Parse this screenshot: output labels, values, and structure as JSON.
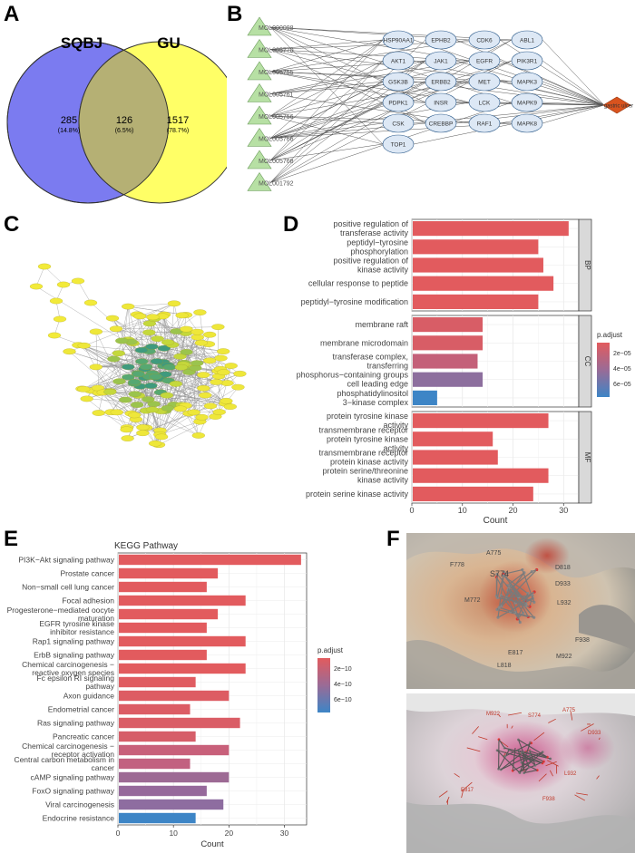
{
  "panels": {
    "a": "A",
    "b": "B",
    "c": "C",
    "d": "D",
    "e": "E",
    "f": "F"
  },
  "venn": {
    "left_label": "SQBJ",
    "right_label": "GU",
    "left_only": "285",
    "left_pct": "(14.8%)",
    "both": "126",
    "both_pct": "(6.5%)",
    "right_only": "1517",
    "right_pct": "(78.7%)",
    "colors": {
      "left": "#7b7bf0",
      "right": "#ffff66",
      "overlap": "#b5b074"
    }
  },
  "network_b": {
    "compounds": [
      "MOL000098",
      "MOL005770",
      "MOL005755",
      "MOL005761",
      "MOL005756",
      "MOL005766",
      "MOL005768",
      "MOL001792"
    ],
    "targets": [
      [
        "HSP90AA1",
        "EPHB2",
        "CDK6",
        "ABL1"
      ],
      [
        "AKT1",
        "JAK1",
        "EGFR",
        "PIK3R1"
      ],
      [
        "GSK3B",
        "ERBB2",
        "MET",
        "MAPK3"
      ],
      [
        "PDPK1",
        "INSR",
        "LCK",
        "MAPK9"
      ],
      [
        "CSK",
        "CREBBP",
        "RAF1",
        "MAPK8"
      ],
      [
        "TOP1"
      ]
    ],
    "disease": "gastric ulcer",
    "colors": {
      "compound": "#b7e0a4",
      "target": "#dde8f5",
      "disease": "#d9531e"
    }
  },
  "chart_data": [
    {
      "type": "bar",
      "orientation": "horizontal",
      "panel": "D",
      "xlabel": "Count",
      "xlim": [
        0,
        33
      ],
      "xticks": [
        0,
        10,
        20,
        30
      ],
      "legend": {
        "title": "p.adjust",
        "ticks": [
          "2e−05",
          "4e−05",
          "6e−05"
        ],
        "placement": "right"
      },
      "groups": [
        {
          "name": "BP",
          "categories": [
            {
              "label": [
                "positive regulation of",
                "transferase activity"
              ],
              "value": 31,
              "color": "#e25b5e"
            },
            {
              "label": [
                "peptidyl−tyrosine",
                "phosphorylation"
              ],
              "value": 25,
              "color": "#e25b5e"
            },
            {
              "label": [
                "positive regulation of",
                "kinase activity"
              ],
              "value": 26,
              "color": "#e25b5e"
            },
            {
              "label": [
                "cellular response to peptide"
              ],
              "value": 28,
              "color": "#e25b5e"
            },
            {
              "label": [
                "peptidyl−tyrosine modification"
              ],
              "value": 25,
              "color": "#e25b5e"
            }
          ]
        },
        {
          "name": "CC",
          "categories": [
            {
              "label": [
                "membrane raft"
              ],
              "value": 14,
              "color": "#d85d66"
            },
            {
              "label": [
                "membrane microdomain"
              ],
              "value": 14,
              "color": "#d85d66"
            },
            {
              "label": [
                "transferase complex,",
                "transferring"
              ],
              "value": 13,
              "color": "#c46079"
            },
            {
              "label": [
                "phosphorus−containing groups",
                "cell leading edge"
              ],
              "value": 14,
              "color": "#8d6f9e"
            },
            {
              "label": [
                "phosphatidylinositol",
                "3−kinase complex"
              ],
              "value": 5,
              "color": "#3d85c6"
            }
          ]
        },
        {
          "name": "MF",
          "categories": [
            {
              "label": [
                "protein tyrosine kinase",
                "activity"
              ],
              "value": 27,
              "color": "#e25b5e"
            },
            {
              "label": [
                "transmembrane receptor",
                "protein tyrosine kinase",
                "activity"
              ],
              "value": 16,
              "color": "#e25b5e"
            },
            {
              "label": [
                "transmembrane receptor",
                "protein kinase activity"
              ],
              "value": 17,
              "color": "#e25b5e"
            },
            {
              "label": [
                "protein serine/threonine",
                "kinase activity"
              ],
              "value": 27,
              "color": "#e25b5e"
            },
            {
              "label": [
                "protein serine kinase activity"
              ],
              "value": 24,
              "color": "#e25b5e"
            }
          ]
        }
      ]
    },
    {
      "type": "bar",
      "orientation": "horizontal",
      "panel": "E",
      "title": "KEGG Pathway",
      "xlabel": "Count",
      "xlim": [
        0,
        34
      ],
      "xticks": [
        0,
        10,
        20,
        30
      ],
      "legend": {
        "title": "p.adjust",
        "ticks": [
          "2e−10",
          "4e−10",
          "6e−10"
        ],
        "placement": "right"
      },
      "categories": [
        {
          "label": [
            "PI3K−Akt signaling pathway"
          ],
          "value": 33,
          "color": "#e25b5e"
        },
        {
          "label": [
            "Prostate cancer"
          ],
          "value": 18,
          "color": "#e25b5e"
        },
        {
          "label": [
            "Non−small cell lung cancer"
          ],
          "value": 16,
          "color": "#e25b5e"
        },
        {
          "label": [
            "Focal adhesion"
          ],
          "value": 23,
          "color": "#e25b5e"
        },
        {
          "label": [
            "Progesterone−mediated oocyte",
            "maturation"
          ],
          "value": 18,
          "color": "#e25b5e"
        },
        {
          "label": [
            "EGFR tyrosine kinase",
            "inhibitor resistance"
          ],
          "value": 16,
          "color": "#e25b5e"
        },
        {
          "label": [
            "Rap1 signaling pathway"
          ],
          "value": 23,
          "color": "#e25b5e"
        },
        {
          "label": [
            "ErbB signaling pathway"
          ],
          "value": 16,
          "color": "#e25b5e"
        },
        {
          "label": [
            "Chemical carcinogenesis −",
            "reactive oxygen species"
          ],
          "value": 23,
          "color": "#e25b5e"
        },
        {
          "label": [
            "Fc epsilon RI signaling",
            "pathway"
          ],
          "value": 14,
          "color": "#e05c61"
        },
        {
          "label": [
            "Axon guidance"
          ],
          "value": 20,
          "color": "#dd5c63"
        },
        {
          "label": [
            "Endometrial cancer"
          ],
          "value": 13,
          "color": "#dc5c65"
        },
        {
          "label": [
            "Ras signaling pathway"
          ],
          "value": 22,
          "color": "#da5d66"
        },
        {
          "label": [
            "Pancreatic cancer"
          ],
          "value": 14,
          "color": "#d65e69"
        },
        {
          "label": [
            "Chemical carcinogenesis −",
            "receptor activation"
          ],
          "value": 20,
          "color": "#c8607a"
        },
        {
          "label": [
            "Central carbon metabolism in",
            "cancer"
          ],
          "value": 13,
          "color": "#c26180"
        },
        {
          "label": [
            "cAMP signaling pathway"
          ],
          "value": 20,
          "color": "#9d6a94"
        },
        {
          "label": [
            "FoxO signaling pathway"
          ],
          "value": 16,
          "color": "#96699b"
        },
        {
          "label": [
            "Viral carcinogenesis"
          ],
          "value": 19,
          "color": "#8e6da0"
        },
        {
          "label": [
            "Endocrine resistance"
          ],
          "value": 14,
          "color": "#3d85c6"
        }
      ]
    }
  ],
  "docking_top": {
    "residues": [
      "A775",
      "F778",
      "S774",
      "D818",
      "D933",
      "M772",
      "L932",
      "F938",
      "M922",
      "E817",
      "L818"
    ]
  },
  "docking_bottom": {
    "residues": [
      "A775",
      "S774",
      "M922",
      "D933",
      "L932",
      "F938",
      "E817"
    ]
  }
}
